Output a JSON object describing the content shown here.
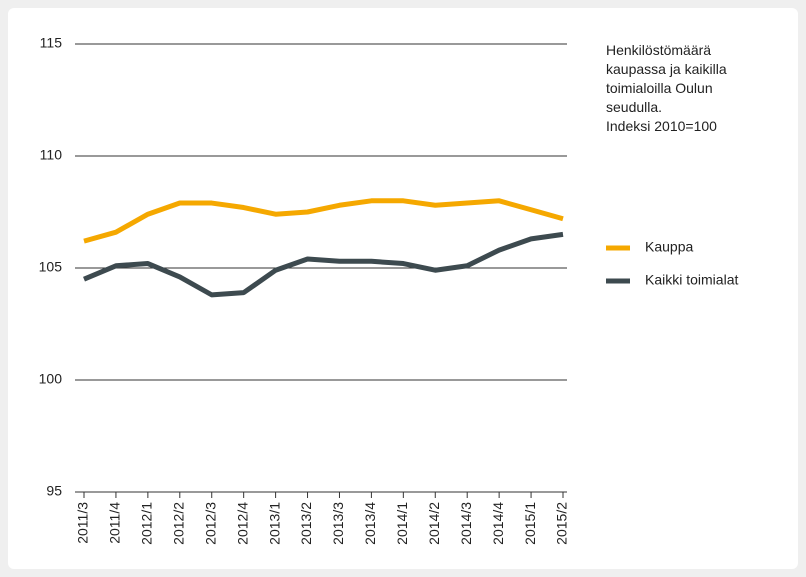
{
  "chart_data": {
    "type": "line",
    "title": "Henkilöstömäärä kaupassa ja kaikilla toimialoilla Oulun seudulla.",
    "subtitle": "Indeksi 2010=100",
    "categories": [
      "2011/3",
      "2011/4",
      "2012/1",
      "2012/2",
      "2012/3",
      "2012/4",
      "2013/1",
      "2013/2",
      "2013/3",
      "2013/4",
      "2014/1",
      "2014/2",
      "2014/3",
      "2014/4",
      "2015/1",
      "2015/2"
    ],
    "series": [
      {
        "name": "Kauppa",
        "color": "#f5a800",
        "values": [
          106.2,
          106.6,
          107.4,
          107.9,
          107.9,
          107.7,
          107.4,
          107.5,
          107.8,
          108.0,
          108.0,
          107.8,
          107.9,
          108.0,
          107.6,
          107.2
        ]
      },
      {
        "name": "Kaikki toimialat",
        "color": "#3d4a4f",
        "values": [
          104.5,
          105.1,
          105.2,
          104.6,
          103.8,
          103.9,
          104.9,
          105.4,
          105.3,
          105.3,
          105.2,
          104.9,
          105.1,
          105.8,
          106.3,
          106.5
        ]
      }
    ],
    "ylim": [
      95,
      115
    ],
    "yticks": [
      95,
      100,
      105,
      110,
      115
    ],
    "grid": true,
    "legend": "right"
  }
}
